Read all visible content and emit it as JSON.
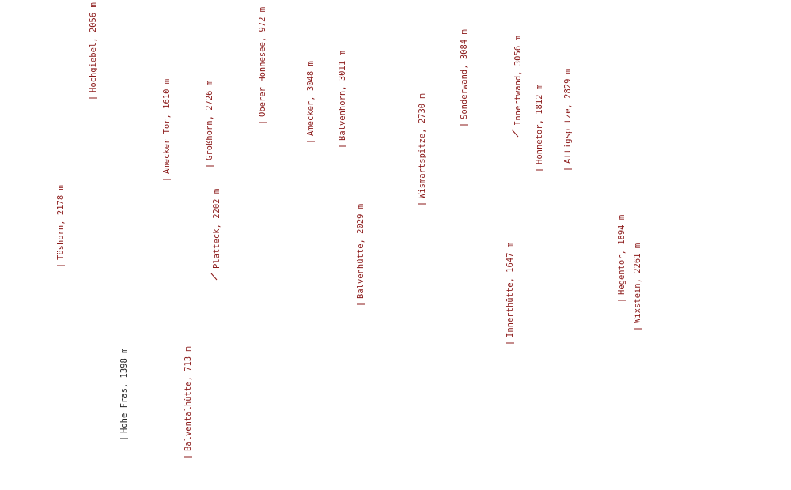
{
  "labels": [
    "Töshorn, 2178 m",
    "Hochgiebel, 2056 m",
    "Hohe Fras, 1398 m",
    "Amecker Tor, 1610 m",
    "Balventalhütte, 713 m",
    "Großhorn, 2726 m",
    "Platteck, 2202 m",
    "Oberer Hönnesee, 972 m",
    "Amecker, 3048 m",
    "Balvenhorn, 3011 m",
    "Balvenhütte, 2029 m",
    "Wismartspitze, 2730 m",
    "Sonderwand, 3084 m",
    "Innerthütte, 1647 m",
    "Innertwand, 3056 m",
    "Hönnetor, 1812 m",
    "Attigspitze, 2829 m",
    "Hegentor, 1894 m",
    "Wixstein, 2261 m"
  ]
}
